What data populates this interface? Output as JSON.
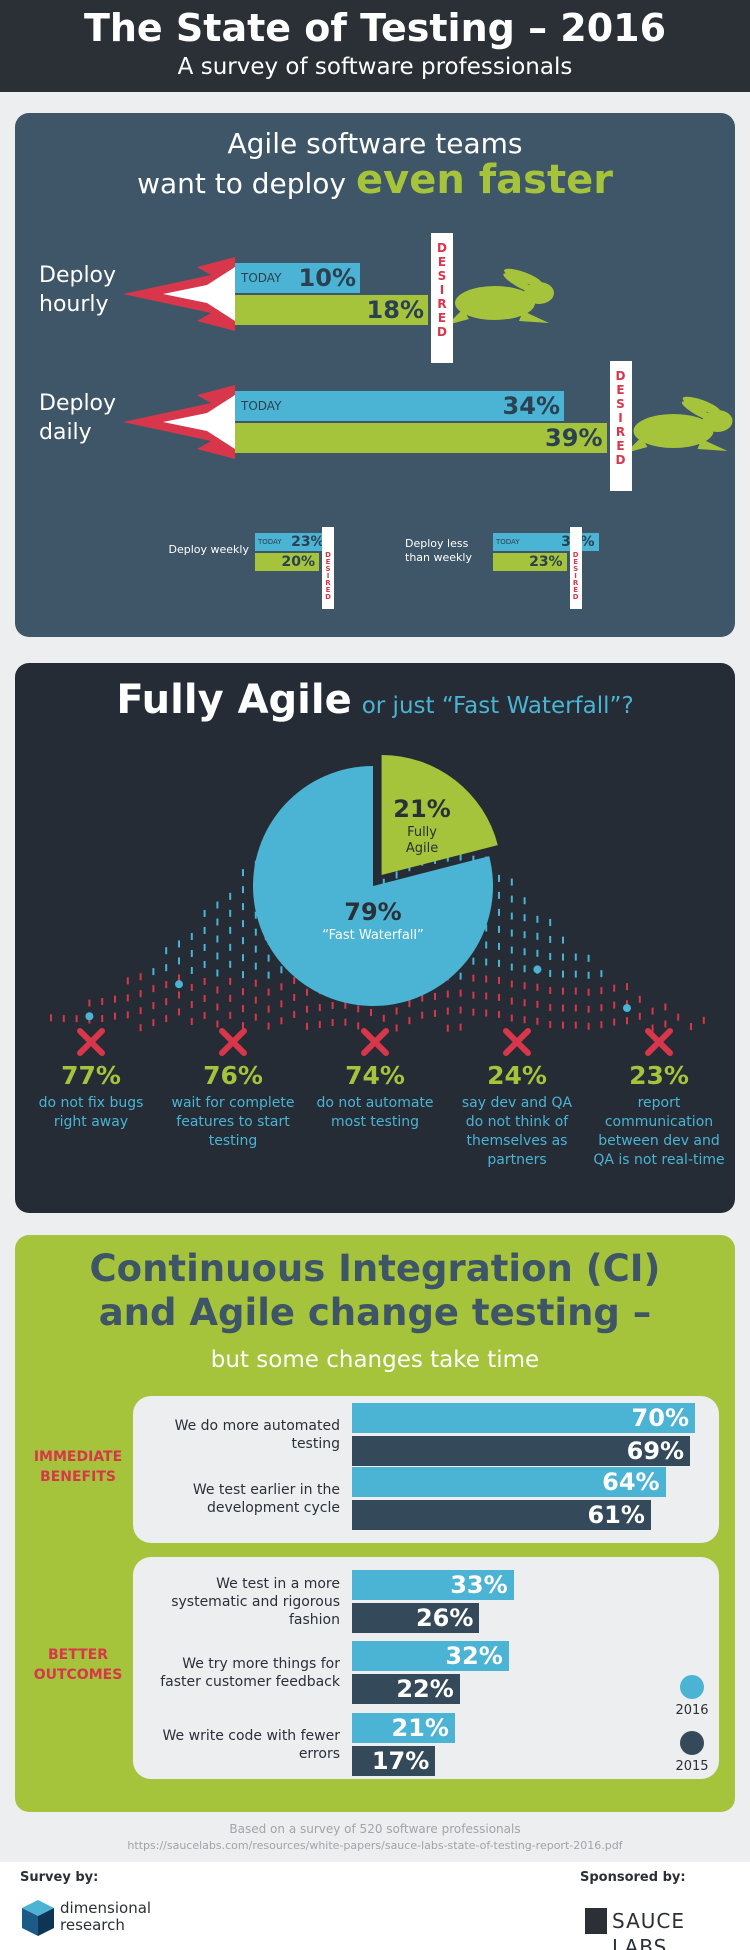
{
  "header": {
    "title": "The State of Testing – 2016",
    "subtitle": "A survey of software professionals"
  },
  "deploy": {
    "title_line1": "Agile software teams",
    "title_line2": "want to deploy",
    "title_emphasis": "even faster",
    "today_label": "TODAY",
    "desired_label": "DESIRED",
    "today_color": "#4bb3d3",
    "desired_color": "#a5c43c",
    "items": [
      {
        "label": "Deploy hourly",
        "today": 10,
        "today_value_label": "10%",
        "desired": 18,
        "desired_value_label": "18%"
      },
      {
        "label": "Deploy daily",
        "today": 34,
        "today_value_label": "34%",
        "desired": 39,
        "desired_value_label": "39%"
      },
      {
        "label": "Deploy weekly",
        "today": 23,
        "today_value_label": "23%",
        "desired": 20,
        "desired_value_label": "20%"
      },
      {
        "label": "Deploy less than weekly",
        "today": 33,
        "today_value_label": "33%",
        "desired": 23,
        "desired_value_label": "23%"
      }
    ]
  },
  "agile": {
    "title_main": "Fully Agile",
    "title_rest": "or just “Fast Waterfall”?",
    "pie": {
      "values": [
        21,
        79
      ],
      "value_labels": [
        "21%",
        "79%"
      ],
      "labels": [
        "Fully Agile",
        "“Fast Waterfall”"
      ],
      "colors": [
        "#a5c43c",
        "#4bb3d3"
      ]
    },
    "stats": [
      {
        "value": "77%",
        "text": "do not fix bugs right away"
      },
      {
        "value": "76%",
        "text": "wait for complete features to start testing"
      },
      {
        "value": "74%",
        "text": "do not automate most testing"
      },
      {
        "value": "24%",
        "text": "say dev and QA do not think of themselves as partners"
      },
      {
        "value": "23%",
        "text": "report communication between dev and QA is not real-time"
      }
    ]
  },
  "ci": {
    "title": "Continuous Integration (CI) and Agile change testing –",
    "subtitle": "but some changes take time",
    "series": [
      {
        "name": "2016",
        "color": "#4bb3d3"
      },
      {
        "name": "2015",
        "color": "#34495a"
      }
    ],
    "groups": [
      {
        "label": "IMMEDIATE BENEFITS",
        "items": [
          {
            "label": "We do more automated testing",
            "values": [
              70,
              69
            ],
            "value_labels": [
              "70%",
              "69%"
            ]
          },
          {
            "label": "We test earlier in the development cycle",
            "values": [
              64,
              61
            ],
            "value_labels": [
              "64%",
              "61%"
            ]
          }
        ]
      },
      {
        "label": "BETTER OUTCOMES",
        "items": [
          {
            "label": "We test in a more systematic and rigorous fashion",
            "values": [
              33,
              26
            ],
            "value_labels": [
              "33%",
              "26%"
            ]
          },
          {
            "label": "We try more things for faster customer feedback",
            "values": [
              32,
              22
            ],
            "value_labels": [
              "32%",
              "22%"
            ]
          },
          {
            "label": "We write code with fewer errors",
            "values": [
              21,
              17
            ],
            "value_labels": [
              "21%",
              "17%"
            ]
          }
        ]
      }
    ]
  },
  "footer": {
    "note": "Based on a survey of 520 software professionals",
    "url": "https://saucelabs.com/resources/white-papers/sauce-labs-state-of-testing-report-2016.pdf",
    "survey_by": "Survey by:",
    "survey_org": "dimensional research",
    "sponsored_by": "Sponsored by:",
    "sponsor": "SAUCE LABS"
  }
}
